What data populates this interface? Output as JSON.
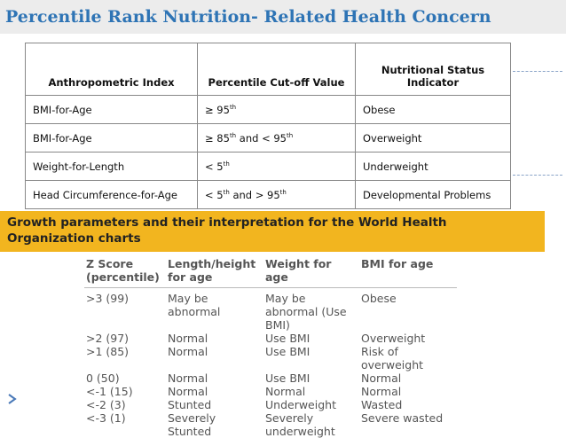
{
  "header": {
    "title": "Percentile Rank Nutrition- Related Health Concern"
  },
  "table": {
    "columns": [
      "Anthropometric Index",
      "Percentile Cut-off Value",
      "Nutritional Status Indicator"
    ],
    "rows": [
      [
        [
          {
            "text": "BMI-for-Age"
          }
        ],
        [
          {
            "text": "≥ 95"
          },
          {
            "sup": "th"
          }
        ],
        [
          {
            "text": "Obese"
          }
        ]
      ],
      [
        [
          {
            "text": "BMI-for-Age"
          }
        ],
        [
          {
            "text": "≥ 85"
          },
          {
            "sup": "th"
          },
          {
            "text": " and < 95"
          },
          {
            "sup": "th"
          }
        ],
        [
          {
            "text": "Overweight"
          }
        ]
      ],
      [
        [
          {
            "text": "Weight-for-Length"
          }
        ],
        [
          {
            "text": "< 5"
          },
          {
            "sup": "th"
          }
        ],
        [
          {
            "text": "Underweight"
          }
        ]
      ],
      [
        [
          {
            "text": "Head Circumference-for-Age"
          }
        ],
        [
          {
            "text": "< 5"
          },
          {
            "sup": "th"
          },
          {
            "text": " and > 95"
          },
          {
            "sup": "th"
          }
        ],
        [
          {
            "text": "Developmental Problems"
          }
        ]
      ]
    ]
  },
  "banner": {
    "text": "Growth parameters and their interpretation for the World Health Organization charts"
  },
  "who_table": {
    "columns": [
      "Z Score (percentile)",
      "Length/height for age",
      "Weight for age",
      "BMI for age"
    ],
    "rows": [
      [
        ">3 (99)",
        "May be abnormal",
        "May be abnormal (Use BMI)",
        "Obese"
      ],
      [
        ">2 (97)",
        "Normal",
        "Use BMI",
        "Overweight"
      ],
      [
        ">1 (85)",
        "Normal",
        "Use BMI",
        "Risk of overweight"
      ],
      [
        "0 (50)",
        "Normal",
        "Use BMI",
        "Normal"
      ],
      [
        "<-1 (15)",
        "Normal",
        "Normal",
        "Normal"
      ],
      [
        "<-2 (3)",
        "Stunted",
        "Underweight",
        "Wasted"
      ],
      [
        "<-3 (1)",
        "Severely Stunted",
        "Severely underweight",
        "Severe wasted"
      ]
    ]
  }
}
